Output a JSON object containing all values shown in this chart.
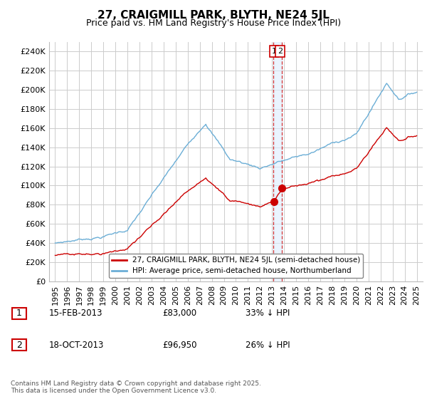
{
  "title": "27, CRAIGMILL PARK, BLYTH, NE24 5JL",
  "subtitle": "Price paid vs. HM Land Registry's House Price Index (HPI)",
  "legend_line1": "27, CRAIGMILL PARK, BLYTH, NE24 5JL (semi-detached house)",
  "legend_line2": "HPI: Average price, semi-detached house, Northumberland",
  "footnote": "Contains HM Land Registry data © Crown copyright and database right 2025.\nThis data is licensed under the Open Government Licence v3.0.",
  "sale1_date": "15-FEB-2013",
  "sale1_price": "£83,000",
  "sale1_hpi": "33% ↓ HPI",
  "sale2_date": "18-OCT-2013",
  "sale2_price": "£96,950",
  "sale2_hpi": "26% ↓ HPI",
  "hpi_color": "#6baed6",
  "price_color": "#cc0000",
  "ylim": [
    0,
    250000
  ],
  "yticks": [
    0,
    20000,
    40000,
    60000,
    80000,
    100000,
    120000,
    140000,
    160000,
    180000,
    200000,
    220000,
    240000
  ],
  "sale1_x": 2013.12,
  "sale2_x": 2013.8,
  "sale1_y": 83000,
  "sale2_y": 96950,
  "xmin": 1994.5,
  "xmax": 2025.5,
  "grid_color": "#cccccc"
}
